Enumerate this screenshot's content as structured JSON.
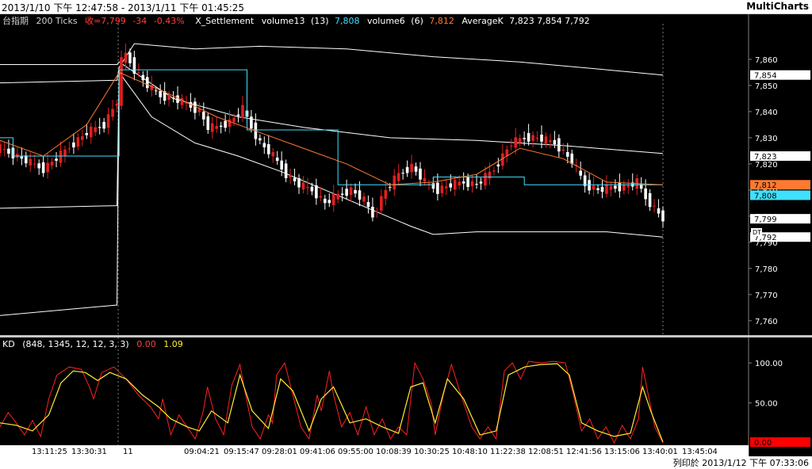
{
  "header": {
    "range": "2013/1/10 下午 12:47:58 - 2013/1/11 下午 01:45:25",
    "brand": "MultiCharts"
  },
  "footer": {
    "printed": "列印於 2013/1/12 下午 07:33:06"
  },
  "colors": {
    "background": "#000000",
    "up": "#e02020",
    "down": "#ffffff",
    "bollinger": "#ffffff",
    "x_settlement": "#40e0ff",
    "average_k": "#ff7a30",
    "k_line": "#ff2020",
    "d_line": "#ffee33",
    "legend_red": "#ff4040",
    "legend_cyan": "#40e0ff",
    "legend_yellow": "#ffee33"
  },
  "chart_data": [
    {
      "type": "candlestick",
      "legend": {
        "symbol": "台指期",
        "interval": "200 Ticks",
        "last": "收=7,799",
        "change": "-34",
        "change_pct": "-0.43%",
        "study1": "X_Settlement",
        "study2": "volume13",
        "study2_param": "(13)",
        "study2_value": "7,808",
        "study3": "volume6",
        "study3_param": "(6)",
        "study3_value": "7,812",
        "study4": "AverageK",
        "study4_values": "7,823  7,854  7,792"
      },
      "y_ticks": [
        7760,
        7770,
        7780,
        7790,
        7800,
        7810,
        7820,
        7830,
        7840,
        7850,
        7860
      ],
      "y_tick_labels": [
        "7,760",
        "7,770",
        "7,780",
        "7,790",
        "7,800",
        "7,810",
        "7,820",
        "7,830",
        "7,840",
        "7,850",
        "7,860"
      ],
      "ylim": [
        7756,
        7873
      ],
      "price_markers": [
        {
          "label": "7,854",
          "value": 7854,
          "color": "#ffffff",
          "text_color": "#000000"
        },
        {
          "label": "7,823",
          "value": 7823,
          "color": "#ffffff",
          "text_color": "#000000"
        },
        {
          "label": "7,812",
          "value": 7812,
          "color": "#ff7a30",
          "text_color": "#000000"
        },
        {
          "label": "7,808",
          "value": 7808,
          "color": "#40e0ff",
          "text_color": "#000000"
        },
        {
          "label": "7,799",
          "value": 7799,
          "color": "#ffffff",
          "text_color": "#000000"
        },
        {
          "label": "7,792",
          "value": 7792,
          "color": "#ffffff",
          "text_color": "#000000"
        }
      ],
      "close_path": [
        [
          0,
          7826
        ],
        [
          5,
          7822
        ],
        [
          10,
          7818
        ],
        [
          15,
          7825
        ],
        [
          20,
          7832
        ],
        [
          24,
          7835
        ],
        [
          27,
          7844
        ],
        [
          27.5,
          7858
        ],
        [
          29,
          7862
        ],
        [
          31,
          7856
        ],
        [
          34,
          7850
        ],
        [
          37,
          7846
        ],
        [
          40,
          7845
        ],
        [
          43,
          7843
        ],
        [
          46,
          7840
        ],
        [
          48,
          7834
        ],
        [
          50,
          7834
        ],
        [
          53,
          7836
        ],
        [
          56,
          7841
        ],
        [
          58,
          7834
        ],
        [
          60,
          7828
        ],
        [
          63,
          7823
        ],
        [
          66,
          7816
        ],
        [
          69,
          7812
        ],
        [
          72,
          7810
        ],
        [
          75,
          7805
        ],
        [
          78,
          7808
        ],
        [
          81,
          7810
        ],
        [
          84,
          7806
        ],
        [
          86,
          7800
        ],
        [
          89,
          7810
        ],
        [
          92,
          7816
        ],
        [
          95,
          7819
        ],
        [
          98,
          7813
        ],
        [
          101,
          7810
        ],
        [
          104,
          7812
        ],
        [
          107,
          7813
        ],
        [
          110,
          7812
        ],
        [
          114,
          7818
        ],
        [
          118,
          7828
        ],
        [
          121,
          7830
        ],
        [
          124,
          7830
        ],
        [
          128,
          7828
        ],
        [
          132,
          7821
        ],
        [
          135,
          7812
        ],
        [
          138,
          7810
        ],
        [
          141,
          7811
        ],
        [
          144,
          7811
        ],
        [
          147,
          7813
        ],
        [
          149,
          7807
        ],
        [
          151,
          7803
        ],
        [
          153,
          7799
        ]
      ],
      "bollinger_mid": [
        [
          0,
          7858
        ],
        [
          27,
          7858
        ],
        [
          27.5,
          7859
        ],
        [
          40,
          7845
        ],
        [
          55,
          7838
        ],
        [
          70,
          7834
        ],
        [
          90,
          7830
        ],
        [
          110,
          7829
        ],
        [
          130,
          7827
        ],
        [
          153,
          7824
        ]
      ],
      "bollinger_upper": [
        [
          0,
          7851
        ],
        [
          27,
          7852
        ],
        [
          27.5,
          7857
        ],
        [
          31,
          7866
        ],
        [
          45,
          7864
        ],
        [
          60,
          7865
        ],
        [
          80,
          7864
        ],
        [
          100,
          7861
        ],
        [
          120,
          7859
        ],
        [
          140,
          7856
        ],
        [
          153,
          7854
        ]
      ],
      "bollinger_lower": [
        [
          0,
          7803
        ],
        [
          27,
          7804
        ],
        [
          27.5,
          7855
        ],
        [
          35,
          7838
        ],
        [
          45,
          7828
        ],
        [
          55,
          7823
        ],
        [
          65,
          7817
        ],
        [
          75,
          7810
        ],
        [
          85,
          7803
        ],
        [
          95,
          7796
        ],
        [
          100,
          7793
        ],
        [
          110,
          7794
        ],
        [
          120,
          7794
        ],
        [
          130,
          7794
        ],
        [
          140,
          7794
        ],
        [
          153,
          7792
        ]
      ],
      "bollinger_outer": [
        [
          0,
          7762
        ],
        [
          27,
          7766
        ],
        [
          27.5,
          7856
        ]
      ],
      "x_settlement": [
        [
          0,
          7830
        ],
        [
          3,
          7830
        ],
        [
          3,
          7823
        ],
        [
          27.5,
          7823
        ],
        [
          27.5,
          7856
        ],
        [
          57,
          7856
        ],
        [
          57,
          7833
        ],
        [
          78,
          7833
        ],
        [
          78,
          7812
        ],
        [
          100,
          7812
        ],
        [
          100,
          7815
        ],
        [
          121,
          7815
        ],
        [
          121,
          7812
        ],
        [
          153,
          7812
        ]
      ],
      "average_k": [
        [
          0,
          7829
        ],
        [
          10,
          7823
        ],
        [
          20,
          7835
        ],
        [
          27.5,
          7855
        ],
        [
          40,
          7846
        ],
        [
          50,
          7838
        ],
        [
          60,
          7832
        ],
        [
          70,
          7826
        ],
        [
          80,
          7820
        ],
        [
          90,
          7812
        ],
        [
          100,
          7813
        ],
        [
          110,
          7816
        ],
        [
          120,
          7826
        ],
        [
          130,
          7822
        ],
        [
          140,
          7813
        ],
        [
          153,
          7812
        ]
      ]
    },
    {
      "type": "line",
      "legend": {
        "name": "KD",
        "params": "(848, 1345, 12, 12, 3, 3)",
        "k_value": "0.00",
        "d_value": "1.09"
      },
      "ylim": [
        0,
        115
      ],
      "y_ticks": [
        50,
        100
      ],
      "y_tick_labels": [
        "50.00",
        "100.00"
      ],
      "last_marker": {
        "label": "0.00",
        "value": 0,
        "color": "#ff0000"
      },
      "k_path": [
        [
          0,
          20
        ],
        [
          2,
          38
        ],
        [
          4,
          25
        ],
        [
          6,
          10
        ],
        [
          8,
          28
        ],
        [
          10,
          8
        ],
        [
          12,
          55
        ],
        [
          14,
          85
        ],
        [
          17,
          95
        ],
        [
          20,
          92
        ],
        [
          22,
          70
        ],
        [
          23,
          55
        ],
        [
          25,
          88
        ],
        [
          28,
          95
        ],
        [
          31,
          80
        ],
        [
          34,
          60
        ],
        [
          37,
          45
        ],
        [
          39,
          30
        ],
        [
          40,
          55
        ],
        [
          42,
          10
        ],
        [
          44,
          35
        ],
        [
          46,
          20
        ],
        [
          48,
          5
        ],
        [
          50,
          40
        ],
        [
          51,
          70
        ],
        [
          53,
          30
        ],
        [
          55,
          10
        ],
        [
          57,
          72
        ],
        [
          59,
          98
        ],
        [
          60,
          70
        ],
        [
          62,
          20
        ],
        [
          64,
          5
        ],
        [
          66,
          35
        ],
        [
          67,
          25
        ],
        [
          68,
          85
        ],
        [
          70,
          100
        ],
        [
          72,
          60
        ],
        [
          74,
          20
        ],
        [
          76,
          5
        ],
        [
          78,
          60
        ],
        [
          79,
          40
        ],
        [
          81,
          90
        ],
        [
          82,
          60
        ],
        [
          84,
          20
        ],
        [
          86,
          38
        ],
        [
          88,
          10
        ],
        [
          90,
          45
        ],
        [
          92,
          10
        ],
        [
          94,
          30
        ],
        [
          96,
          5
        ],
        [
          98,
          20
        ],
        [
          100,
          10
        ],
        [
          102,
          100
        ],
        [
          104,
          80
        ],
        [
          106,
          50
        ],
        [
          107,
          10
        ],
        [
          109,
          60
        ],
        [
          111,
          98
        ],
        [
          113,
          65
        ],
        [
          116,
          20
        ],
        [
          118,
          5
        ],
        [
          120,
          20
        ],
        [
          122,
          5
        ],
        [
          124,
          90
        ],
        [
          126,
          100
        ],
        [
          128,
          80
        ],
        [
          130,
          102
        ],
        [
          133,
          100
        ],
        [
          136,
          102
        ],
        [
          139,
          100
        ],
        [
          141,
          60
        ],
        [
          143,
          15
        ],
        [
          145,
          30
        ],
        [
          147,
          5
        ],
        [
          149,
          20
        ],
        [
          151,
          0
        ],
        [
          153,
          22
        ],
        [
          155,
          5
        ],
        [
          157,
          30
        ],
        [
          158,
          95
        ],
        [
          159,
          70
        ],
        [
          161,
          20
        ],
        [
          163,
          0
        ]
      ],
      "d_path": [
        [
          0,
          25
        ],
        [
          4,
          22
        ],
        [
          8,
          15
        ],
        [
          12,
          35
        ],
        [
          15,
          75
        ],
        [
          18,
          90
        ],
        [
          21,
          88
        ],
        [
          24,
          78
        ],
        [
          27,
          88
        ],
        [
          31,
          80
        ],
        [
          35,
          60
        ],
        [
          39,
          45
        ],
        [
          42,
          30
        ],
        [
          46,
          20
        ],
        [
          49,
          15
        ],
        [
          52,
          40
        ],
        [
          56,
          25
        ],
        [
          59,
          85
        ],
        [
          62,
          40
        ],
        [
          66,
          18
        ],
        [
          69,
          80
        ],
        [
          72,
          65
        ],
        [
          76,
          15
        ],
        [
          79,
          55
        ],
        [
          82,
          70
        ],
        [
          86,
          25
        ],
        [
          90,
          30
        ],
        [
          94,
          20
        ],
        [
          98,
          12
        ],
        [
          101,
          70
        ],
        [
          104,
          75
        ],
        [
          107,
          25
        ],
        [
          110,
          80
        ],
        [
          114,
          55
        ],
        [
          118,
          10
        ],
        [
          122,
          15
        ],
        [
          125,
          85
        ],
        [
          129,
          95
        ],
        [
          133,
          98
        ],
        [
          137,
          99
        ],
        [
          140,
          85
        ],
        [
          143,
          25
        ],
        [
          147,
          15
        ],
        [
          151,
          8
        ],
        [
          155,
          12
        ],
        [
          158,
          70
        ],
        [
          160,
          40
        ],
        [
          163,
          1
        ]
      ]
    }
  ],
  "x_axis": {
    "labels": [
      "13:11:25",
      "13:30:31",
      "11",
      "09:04:21",
      "09:15:47",
      "09:28:01",
      "09:41:06",
      "09:55:00",
      "10:08:39",
      "10:30:25",
      "10:48:10",
      "11:22:38",
      "12:08:51",
      "12:41:56",
      "13:15:06",
      "13:40:01",
      "13:45:04"
    ],
    "session_break_label": "11"
  },
  "extra": {
    "tag": "DT"
  }
}
